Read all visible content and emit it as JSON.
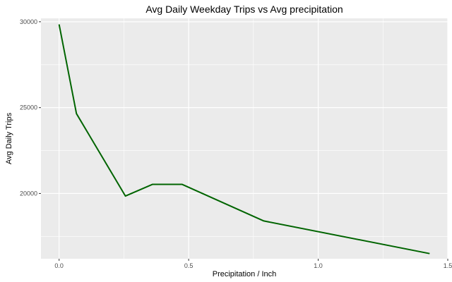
{
  "chart_data": {
    "type": "line",
    "title": "Avg Daily Weekday Trips vs Avg precipitation",
    "xlabel": "Precipitation / Inch",
    "ylabel": "Avg Daily Trips",
    "xlim": [
      -0.07,
      1.5
    ],
    "ylim": [
      16200,
      30200
    ],
    "x_ticks": [
      0.0,
      0.5,
      1.0,
      1.5
    ],
    "x_tick_labels": [
      "0.0",
      "0.5",
      "1.0",
      "1.5"
    ],
    "y_ticks": [
      20000,
      25000,
      30000
    ],
    "y_tick_labels": [
      "20000",
      "25000",
      "30000"
    ],
    "grid": true,
    "legend": "none",
    "panel_color": "#ebebeb",
    "grid_color": "#ffffff",
    "line_color": "#006400",
    "series": [
      {
        "x": [
          0.0,
          0.067,
          0.256,
          0.36,
          0.475,
          0.79,
          1.43
        ],
        "y": [
          29850,
          24650,
          19850,
          20530,
          20530,
          18400,
          16500
        ]
      }
    ]
  }
}
